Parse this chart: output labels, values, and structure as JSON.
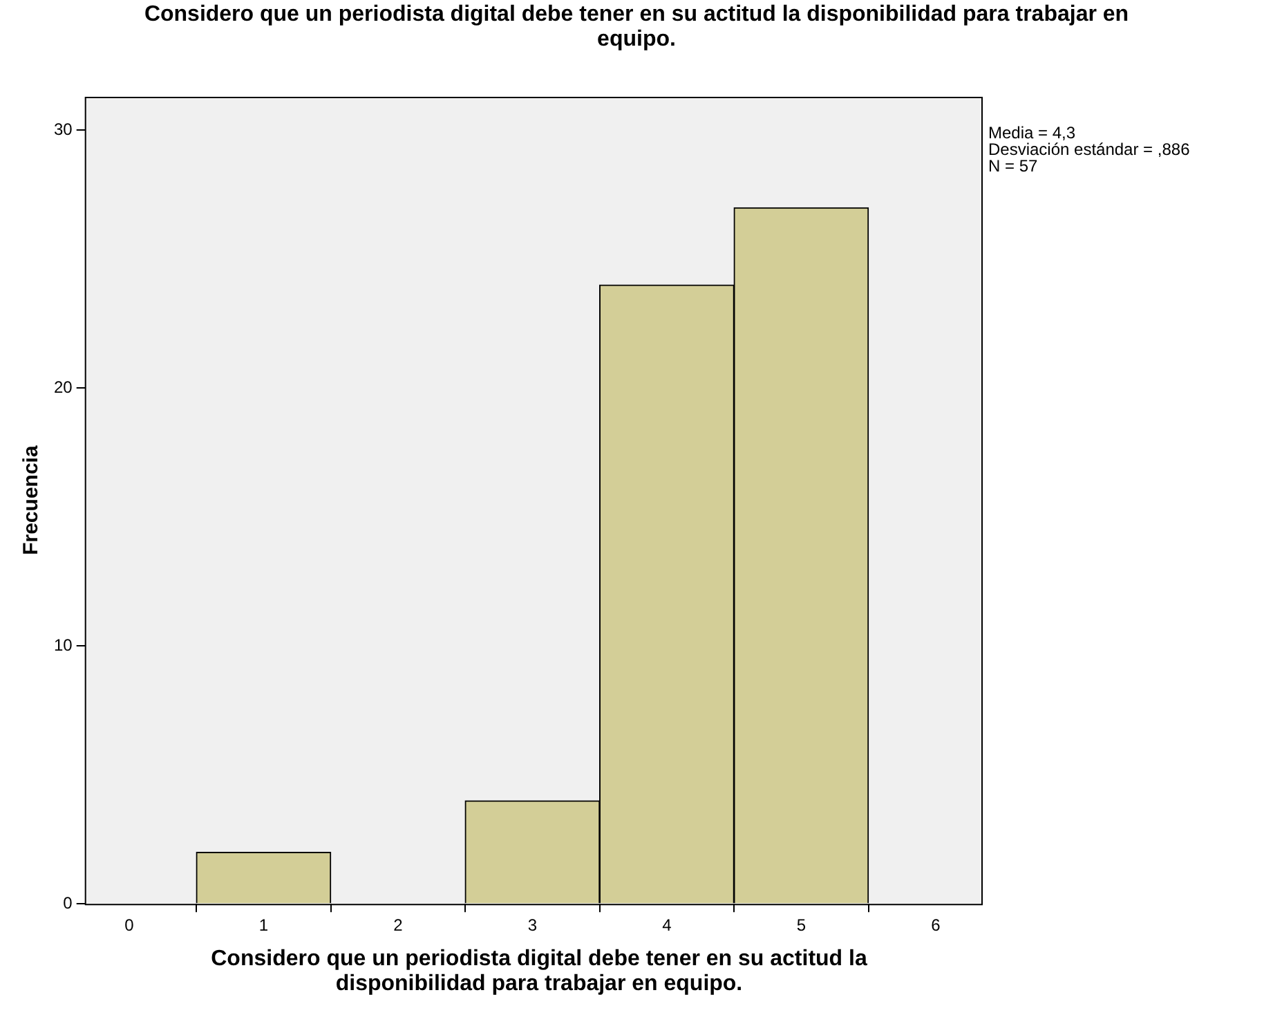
{
  "chart_data": {
    "type": "histogram",
    "title": "Considero que un periodista digital debe tener en su actitud la disponibilidad para trabajar en equipo.",
    "xlabel": "Considero que un periodista digital debe tener en su actitud la disponibilidad para trabajar en equipo.",
    "ylabel": "Frecuencia",
    "bins": [
      0.5,
      1.5,
      2.5,
      3.5,
      4.5,
      5.5
    ],
    "values": [
      2,
      0,
      4,
      24,
      27
    ],
    "color": "#d3ce97",
    "xlim": [
      -0.33,
      6.34
    ],
    "xticks": [
      0,
      1,
      2,
      3,
      4,
      5,
      6
    ],
    "ylim": [
      0,
      31.3
    ],
    "yticks": [
      0,
      10,
      20,
      30
    ],
    "grid": false,
    "annotations": [
      "Media = 4,3",
      "Desviación estándar = ,886",
      "N = 57"
    ]
  }
}
